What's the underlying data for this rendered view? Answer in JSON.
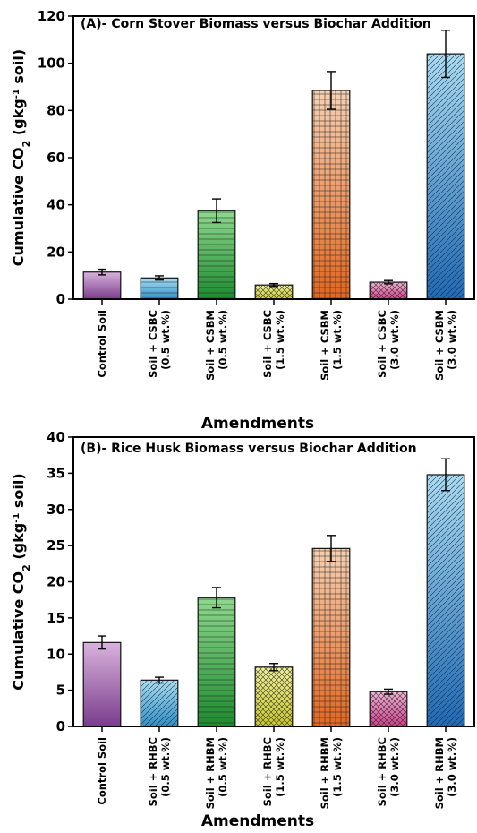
{
  "chart_data": [
    {
      "type": "bar",
      "title": "(A)- Corn Stover Biomass versus Biochar Addition",
      "ylabel_main": "Cumulative CO",
      "ylabel_sub": "2",
      "ylabel_unit_pre": " (gkg",
      "ylabel_sup": "-1",
      "ylabel_unit_post": " soil)",
      "xlabel": "Amendments",
      "ylim": [
        0,
        120
      ],
      "yticks": [
        "0",
        "20",
        "40",
        "60",
        "80",
        "100",
        "120"
      ],
      "categories": [
        {
          "line1": "Control Soil",
          "line2": ""
        },
        {
          "line1": "Soil + CSBC",
          "line2": "(0.5 wt.%)"
        },
        {
          "line1": "Soil + CSBM",
          "line2": "(0.5 wt.%)"
        },
        {
          "line1": "Soil + CSBC",
          "line2": "(1.5 wt.%)"
        },
        {
          "line1": "Soil + CSBM",
          "line2": "(1.5 wt.%)"
        },
        {
          "line1": "Soil + CSBC",
          "line2": "(3.0 wt.%)"
        },
        {
          "line1": "Soil + CSBM",
          "line2": "(3.0 wt.%)"
        }
      ],
      "values": [
        11.5,
        9.0,
        37.5,
        6.0,
        88.5,
        7.2,
        104.0
      ],
      "errors": [
        1.2,
        0.9,
        5.0,
        0.6,
        8.0,
        0.7,
        10.0
      ],
      "bar_colors": [
        [
          "#d8b2dc",
          "#7a3d8c"
        ],
        [
          "#a8ddf2",
          "#2f8fc9"
        ],
        [
          "#8ed88e",
          "#1d8a2e"
        ],
        [
          "#f2f29a",
          "#c9c930"
        ],
        [
          "#f6d0b2",
          "#e3661e"
        ],
        [
          "#f2b6d6",
          "#d43f8c"
        ],
        [
          "#a8dcf5",
          "#1d6ab8"
        ]
      ],
      "patterns": [
        "none",
        "hline",
        "hline",
        "cross",
        "grid",
        "cross",
        "diag"
      ]
    },
    {
      "type": "bar",
      "title": "(B)- Rice Husk Biomass versus Biochar Addition",
      "ylabel_main": "Cumulative CO",
      "ylabel_sub": "2",
      "ylabel_unit_pre": " (gkg",
      "ylabel_sup": "-1",
      "ylabel_unit_post": " soil)",
      "xlabel": "Amendments",
      "ylim": [
        0,
        40
      ],
      "yticks": [
        "0",
        "5",
        "10",
        "15",
        "20",
        "25",
        "30",
        "35",
        "40"
      ],
      "categories": [
        {
          "line1": "Control Soil",
          "line2": ""
        },
        {
          "line1": "Soil + RHBC",
          "line2": "(0.5 wt.%)"
        },
        {
          "line1": "Soil + RHBM",
          "line2": "(0.5 wt.%)"
        },
        {
          "line1": "Soil + RHBC",
          "line2": "(1.5 wt.%)"
        },
        {
          "line1": "Soil + RHBM",
          "line2": "(1.5 wt.%)"
        },
        {
          "line1": "Soil + RHBC",
          "line2": "(3.0 wt.%)"
        },
        {
          "line1": "Soil + RHBM",
          "line2": "(3.0 wt.%)"
        }
      ],
      "values": [
        11.6,
        6.4,
        17.8,
        8.2,
        24.6,
        4.8,
        34.8
      ],
      "errors": [
        0.9,
        0.4,
        1.4,
        0.5,
        1.8,
        0.35,
        2.2
      ],
      "bar_colors": [
        [
          "#d8b2dc",
          "#7a3d8c"
        ],
        [
          "#a8ddf2",
          "#2f8fc9"
        ],
        [
          "#8ed88e",
          "#1d8a2e"
        ],
        [
          "#f2f29a",
          "#c9c930"
        ],
        [
          "#f6d0b2",
          "#e3661e"
        ],
        [
          "#f2b6d6",
          "#d43f8c"
        ],
        [
          "#a8dcf5",
          "#1d6ab8"
        ]
      ],
      "patterns": [
        "none",
        "diag",
        "hline",
        "cross",
        "grid",
        "cross",
        "diag"
      ]
    }
  ]
}
